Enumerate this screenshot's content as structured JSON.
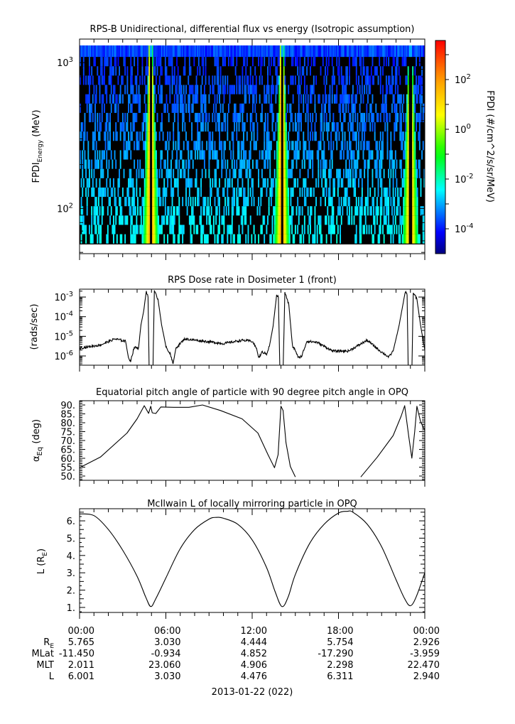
{
  "chart_data": [
    {
      "type": "heatmap",
      "title": "RPS-B  Unidirectional, differential flux vs energy (Isotropic assumption)",
      "ylabel": "FPDI",
      "ylabel_sub": "Energy",
      "ylabel_unit": " (MeV)",
      "yscale": "log",
      "ylim": [
        49,
        1450
      ],
      "yticks": [
        {
          "value": 100,
          "base": "10",
          "exp": "2"
        },
        {
          "value": 1000,
          "base": "10",
          "exp": "3"
        }
      ],
      "energy_range_mev": [
        57.5,
        1312
      ],
      "n_energy_bins": 21,
      "n_time_bins": 300,
      "x_range_hours": [
        0,
        24
      ],
      "belt_crossings_hours": [
        4.95,
        14.07,
        23.0
      ],
      "peak_flux_log10": 1.8,
      "background_flux_log10": -3.0,
      "colorbar": {
        "label": "FPDI (#/cm^2/s/sr/MeV)",
        "range_log10": [
          -5.0,
          3.57
        ],
        "ticks": [
          {
            "value": 2,
            "base": "10",
            "exp": "2"
          },
          {
            "value": 0,
            "base": "10",
            "exp": "0"
          },
          {
            "value": -2,
            "base": "10",
            "exp": "-2"
          },
          {
            "value": -4,
            "base": "10",
            "exp": "-4"
          }
        ],
        "colors": [
          "#000080",
          "#0000ff",
          "#00ffff",
          "#00ff00",
          "#ffff00",
          "#ff9900",
          "#ff0000"
        ]
      }
    },
    {
      "type": "line",
      "title": "RPS  Dose rate in Dosimeter 1 (front)",
      "ylabel": "(rads/sec)",
      "yscale": "log",
      "ylim_log10": [
        -6.47,
        -2.6
      ],
      "yticks": [
        {
          "value": -3,
          "base": "10",
          "exp": "-3"
        },
        {
          "value": -4,
          "base": "10",
          "exp": "-4"
        },
        {
          "value": -5,
          "base": "10",
          "exp": "-5"
        },
        {
          "value": -6,
          "base": "10",
          "exp": "-6"
        }
      ],
      "x_hours": [
        0,
        1.45,
        2.45,
        3.2,
        3.4,
        3.55,
        3.8,
        4.1,
        4.27,
        4.45,
        4.64,
        4.76,
        4.84,
        5.1,
        5.2,
        5.45,
        5.7,
        6.0,
        6.3,
        6.5,
        6.7,
        7.3,
        8.7,
        10,
        11.3,
        12,
        12.3,
        12.45,
        12.7,
        13.0,
        13.2,
        13.45,
        13.7,
        13.82,
        13.93,
        14.15,
        14.27,
        14.55,
        14.8,
        15.0,
        15.2,
        15.45,
        15.8,
        16.5,
        17.6,
        18.7,
        20.0,
        20.9,
        21.5,
        21.8,
        22.2,
        22.45,
        22.65,
        22.77,
        22.85,
        23.1,
        23.2,
        23.45,
        23.7,
        24
      ],
      "y_log10": [
        -5.6,
        -5.44,
        -5.13,
        -5.25,
        -6.1,
        -6.25,
        -5.56,
        -5.6,
        -4.4,
        -3.75,
        -2.7,
        -3.0,
        -6.8,
        -6.8,
        -2.7,
        -3.1,
        -4.4,
        -5.5,
        -5.9,
        -6.4,
        -5.6,
        -5.13,
        -5.25,
        -5.37,
        -5.2,
        -5.25,
        -5.6,
        -6.1,
        -5.8,
        -5.9,
        -5.5,
        -4.5,
        -2.9,
        -3.0,
        -6.8,
        -6.8,
        -2.75,
        -3.4,
        -5.5,
        -5.7,
        -6.1,
        -6.0,
        -5.25,
        -5.3,
        -5.75,
        -5.75,
        -5.2,
        -5.75,
        -6.06,
        -5.75,
        -4.5,
        -3.5,
        -2.7,
        -2.9,
        -6.8,
        -6.8,
        -2.75,
        -3.1,
        -4.4,
        -5.7
      ]
    },
    {
      "type": "line",
      "title": "Equatorial pitch angle of particle with 90 degree pitch angle in OPQ",
      "ylabel": "α",
      "ylabel_sub": "Eq",
      "ylabel_unit": " (deg)",
      "ylim": [
        47.6,
        92.4
      ],
      "yticks": [
        "50.",
        "55.",
        "60.",
        "65.",
        "70.",
        "75.",
        "80.",
        "85.",
        "90."
      ],
      "segments": [
        {
          "x_hours": [
            0,
            1.45,
            3.3,
            4.0,
            4.5,
            4.8,
            4.95,
            5.05,
            5.3,
            5.65,
            6.55,
            7.6,
            8.55,
            9.8,
            11.3,
            12.4,
            13.1,
            13.55,
            13.8,
            14.0,
            14.15,
            14.35,
            14.65,
            15.0
          ],
          "y": [
            54.7,
            60.7,
            74.2,
            82.2,
            89.6,
            85.3,
            89.3,
            85.6,
            85.2,
            88.9,
            88.7,
            88.7,
            90.0,
            86.9,
            82.2,
            74.2,
            62.0,
            54.7,
            62.0,
            89.3,
            86.9,
            68.8,
            55.4,
            49.5
          ]
        },
        {
          "x_hours": [
            19.55,
            20.7,
            21.8,
            22.35,
            22.6,
            22.9,
            23.1,
            23.3,
            23.45,
            23.7,
            24
          ],
          "y": [
            49.5,
            60.7,
            72.8,
            83.6,
            89.6,
            71.5,
            60.1,
            75.0,
            89.3,
            80.9,
            75.5
          ]
        }
      ]
    },
    {
      "type": "line",
      "title": "McIlwain L of locally mirroring particle in OPQ",
      "ylabel": "L (R",
      "ylabel_sub": "E",
      "ylabel_unit": ")",
      "ylim": [
        0.71,
        6.7
      ],
      "yticks": [
        "1.",
        "2.",
        "3.",
        "4.",
        "5.",
        "6."
      ],
      "x_hours": [
        0,
        1,
        2,
        3,
        4,
        4.6,
        4.95,
        5.3,
        6,
        7,
        8,
        9,
        9.5,
        10,
        11,
        12,
        13,
        13.6,
        14.07,
        14.5,
        15,
        16,
        17,
        18,
        18.6,
        19,
        20,
        21,
        22,
        22.6,
        23.0,
        23.4,
        24
      ],
      "y": [
        6.4,
        6.3,
        5.5,
        4.3,
        2.8,
        1.6,
        1.05,
        1.5,
        2.7,
        4.4,
        5.5,
        6.1,
        6.2,
        6.15,
        5.8,
        4.9,
        3.3,
        1.9,
        1.05,
        1.6,
        2.9,
        4.7,
        5.8,
        6.45,
        6.55,
        6.5,
        5.8,
        4.5,
        2.6,
        1.5,
        1.1,
        1.6,
        3.0
      ]
    }
  ],
  "x_axis": {
    "tick_labels": [
      "00:00",
      "06:00",
      "12:00",
      "18:00",
      "00:00"
    ],
    "ephemeris": [
      {
        "label": "R",
        "label_sub": "E",
        "values": [
          "5.765",
          "3.030",
          "4.444",
          "5.754",
          "2.926"
        ]
      },
      {
        "label": "MLat",
        "label_sub": "",
        "values": [
          "-11.450",
          "-0.934",
          "4.852",
          "-17.290",
          "-3.959"
        ]
      },
      {
        "label": "MLT",
        "label_sub": "",
        "values": [
          "2.011",
          "23.060",
          "4.906",
          "2.298",
          "22.470"
        ]
      },
      {
        "label": "L",
        "label_sub": "",
        "values": [
          "6.001",
          "3.030",
          "4.476",
          "6.311",
          "2.940"
        ]
      }
    ],
    "date_label": "2013-01-22 (022)"
  }
}
